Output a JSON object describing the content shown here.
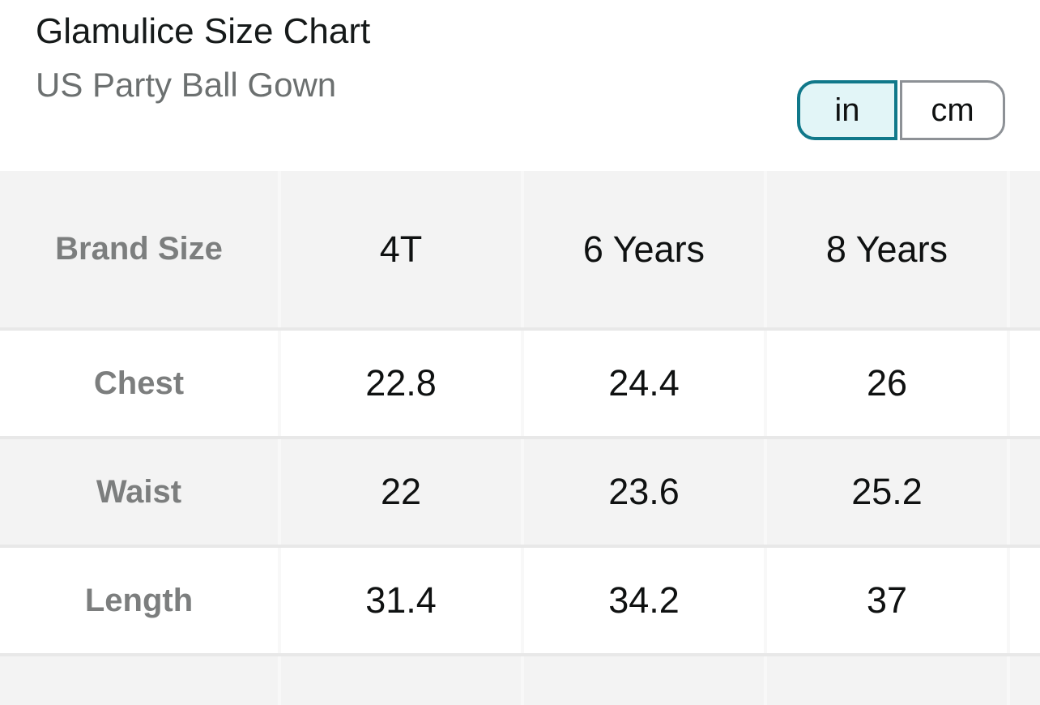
{
  "page": {
    "title": "Glamulice Size Chart",
    "subtitle": "US Party Ball Gown"
  },
  "unit_toggle": {
    "selected": "in",
    "options": [
      {
        "label": "in",
        "selected": true
      },
      {
        "label": "cm",
        "selected": false
      }
    ]
  },
  "size_table": {
    "columns": [
      "Brand Size",
      "4T",
      "6 Years",
      "8 Years"
    ],
    "rows": [
      {
        "label": "Chest",
        "values": [
          "22.8",
          "24.4",
          "26"
        ]
      },
      {
        "label": "Waist",
        "values": [
          "22",
          "23.6",
          "25.2"
        ]
      },
      {
        "label": "Length",
        "values": [
          "31.4",
          "34.2",
          "37"
        ]
      }
    ]
  },
  "colors": {
    "accent_teal": "#10788A",
    "selected_segment_fill": "#E2F5F7",
    "unselected_segment_border": "#8D9196",
    "row_stripe_gray": "#F3F3F3",
    "text_dark": "#0F1111",
    "text_gray": "#7C7E7E"
  }
}
